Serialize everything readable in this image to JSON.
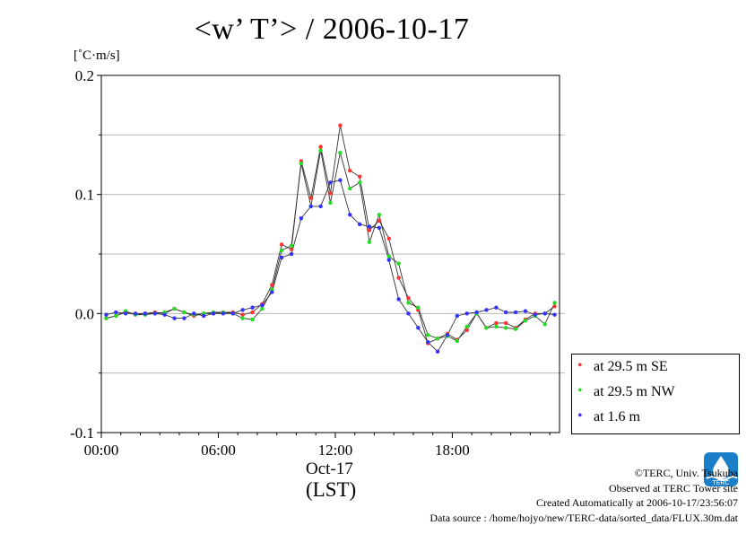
{
  "page": {
    "title": "<w’ T’> / 2006-10-17",
    "unit_label": "[˚C·m/s]",
    "x_date_label": "Oct-17",
    "x_zone_label": "(LST)"
  },
  "legend": [
    {
      "label": "at 29.5 m SE",
      "color": "#ff3333"
    },
    {
      "label": "at 29.5 m NW",
      "color": "#22dd22"
    },
    {
      "label": "at 1.6 m",
      "color": "#3333ff"
    }
  ],
  "credits": {
    "line1": "©TERC, Univ. Tsukuba",
    "line2": "Observed at TERC Tower site",
    "line3": "Created Automatically at 2006-10-17/23:56:07",
    "line4": "Data source : /home/hojyo/new/TERC-data/sorted_data/FLUX.30m.dat",
    "logo_text": "TERC"
  },
  "chart_data": {
    "type": "line",
    "title": "<w’ T’> / 2006-10-17",
    "ylabel": "[˚C·m/s]",
    "xlabel": "(LST)",
    "xlim": [
      0,
      23.5
    ],
    "ylim": [
      -0.1,
      0.2
    ],
    "x_ticks": [
      0,
      6,
      12,
      18
    ],
    "x_tick_labels": [
      "00:00",
      "06:00",
      "12:00",
      "18:00"
    ],
    "y_ticks": [
      -0.1,
      0.0,
      0.1,
      0.2
    ],
    "y_tick_labels": [
      "-0.1",
      "0.0",
      "0.1",
      "0.2"
    ],
    "grid": true,
    "legend_position": "bottom-right, outside plot",
    "x": [
      0.25,
      0.75,
      1.25,
      1.75,
      2.25,
      2.75,
      3.25,
      3.75,
      4.25,
      4.75,
      5.25,
      5.75,
      6.25,
      6.75,
      7.25,
      7.75,
      8.25,
      8.75,
      9.25,
      9.75,
      10.25,
      10.75,
      11.25,
      11.75,
      12.25,
      12.75,
      13.25,
      13.75,
      14.25,
      14.75,
      15.25,
      15.75,
      16.25,
      16.75,
      17.25,
      17.75,
      18.25,
      18.75,
      19.25,
      19.75,
      20.25,
      20.75,
      21.25,
      21.75,
      22.25,
      22.75,
      23.25
    ],
    "series": [
      {
        "name": "at 29.5 m SE",
        "color": "#ff3333",
        "values": [
          -0.004,
          -0.002,
          0.001,
          -0.001,
          0.0,
          0.001,
          0.0,
          0.004,
          0.001,
          -0.002,
          0.0,
          0.0,
          0.001,
          0.001,
          -0.001,
          0.001,
          0.008,
          0.024,
          0.058,
          0.054,
          0.128,
          0.097,
          0.14,
          0.101,
          0.158,
          0.12,
          0.115,
          0.07,
          0.078,
          0.063,
          0.03,
          0.013,
          0.003,
          -0.025,
          -0.021,
          -0.017,
          -0.022,
          -0.014,
          0.0,
          -0.012,
          -0.008,
          -0.008,
          -0.012,
          -0.005,
          0.0,
          0.0,
          0.006
        ]
      },
      {
        "name": "at 29.5 m NW",
        "color": "#22dd22",
        "values": [
          -0.004,
          -0.002,
          0.002,
          -0.001,
          -0.001,
          0.0,
          0.001,
          0.004,
          0.001,
          -0.001,
          0.0,
          0.001,
          0.001,
          0.0,
          -0.004,
          -0.005,
          0.004,
          0.02,
          0.053,
          0.057,
          0.126,
          0.09,
          0.137,
          0.093,
          0.135,
          0.105,
          0.11,
          0.06,
          0.083,
          0.048,
          0.042,
          0.009,
          0.005,
          -0.018,
          -0.021,
          -0.019,
          -0.023,
          -0.011,
          0.0,
          -0.012,
          -0.011,
          -0.012,
          -0.013,
          -0.006,
          -0.002,
          -0.009,
          0.009
        ]
      },
      {
        "name": "at 1.6 m",
        "color": "#3333ff",
        "values": [
          -0.001,
          0.001,
          0.0,
          0.0,
          0.0,
          0.0,
          -0.001,
          -0.004,
          -0.004,
          0.0,
          -0.002,
          0.0,
          0.0,
          0.0,
          0.003,
          0.005,
          0.007,
          0.018,
          0.047,
          0.05,
          0.08,
          0.09,
          0.09,
          0.11,
          0.112,
          0.083,
          0.075,
          0.073,
          0.072,
          0.045,
          0.012,
          0.0,
          -0.012,
          -0.024,
          -0.032,
          -0.018,
          -0.002,
          0.0,
          0.001,
          0.003,
          0.005,
          0.001,
          0.001,
          0.002,
          -0.001,
          0.0,
          -0.001
        ]
      }
    ]
  }
}
